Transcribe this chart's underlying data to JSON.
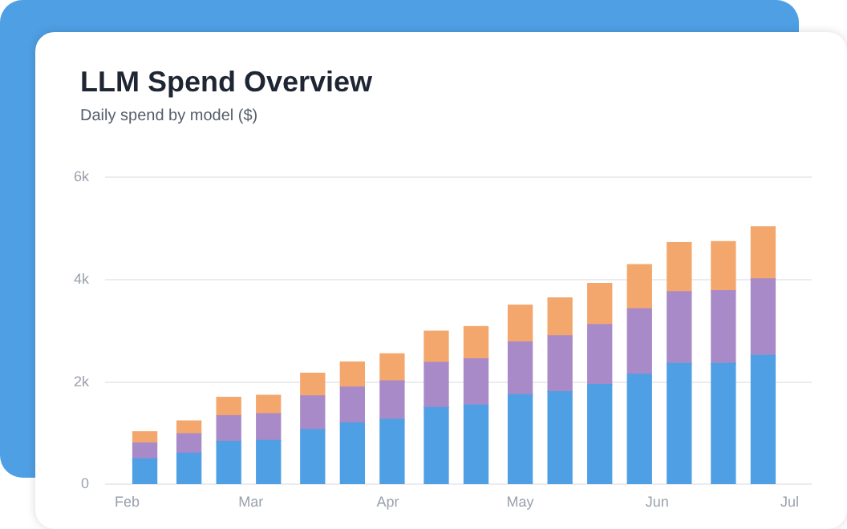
{
  "chart_data": {
    "type": "bar",
    "title": "LLM Spend Overview",
    "subtitle": "Daily spend by model ($)",
    "stacked": true,
    "x": [
      "--02-05",
      "--02-15",
      "--02-24",
      "--03-05",
      "--03-15",
      "--03-24",
      "--04-02",
      "--04-12",
      "--04-21",
      "--05-01",
      "--05-10",
      "--05-19",
      "--05-28",
      "--06-06",
      "--06-16",
      "--06-25"
    ],
    "series": [
      {
        "color": "#4f9fe4",
        "values": [
          500,
          610,
          840,
          860,
          1070,
          1200,
          1270,
          1500,
          1550,
          1750,
          1810,
          1950,
          2150,
          2360,
          2360,
          2520
        ]
      },
      {
        "color": "#a98ac8",
        "values": [
          310,
          380,
          500,
          520,
          660,
          700,
          750,
          880,
          900,
          1030,
          1090,
          1170,
          1280,
          1400,
          1420,
          1490
        ]
      },
      {
        "color": "#f4a76c",
        "values": [
          220,
          250,
          360,
          360,
          440,
          490,
          530,
          610,
          630,
          720,
          740,
          800,
          860,
          960,
          960,
          1020
        ]
      }
    ],
    "xlim": [
      "--01-27",
      "--07-06"
    ],
    "xticks": [
      {
        "value": "--02-01",
        "label": "Feb"
      },
      {
        "value": "--03-01",
        "label": "Mar"
      },
      {
        "value": "--04-01",
        "label": "Apr"
      },
      {
        "value": "--05-01",
        "label": "May"
      },
      {
        "value": "--06-01",
        "label": "Jun"
      },
      {
        "value": "--07-01",
        "label": "Jul"
      }
    ],
    "ylim": [
      0,
      6000
    ],
    "yticks": [
      0,
      {
        "value": 2000,
        "label": "2k"
      },
      {
        "value": 4000,
        "label": "4k"
      },
      {
        "value": 6000,
        "label": "6k"
      }
    ],
    "grid": "y",
    "legend": false
  }
}
